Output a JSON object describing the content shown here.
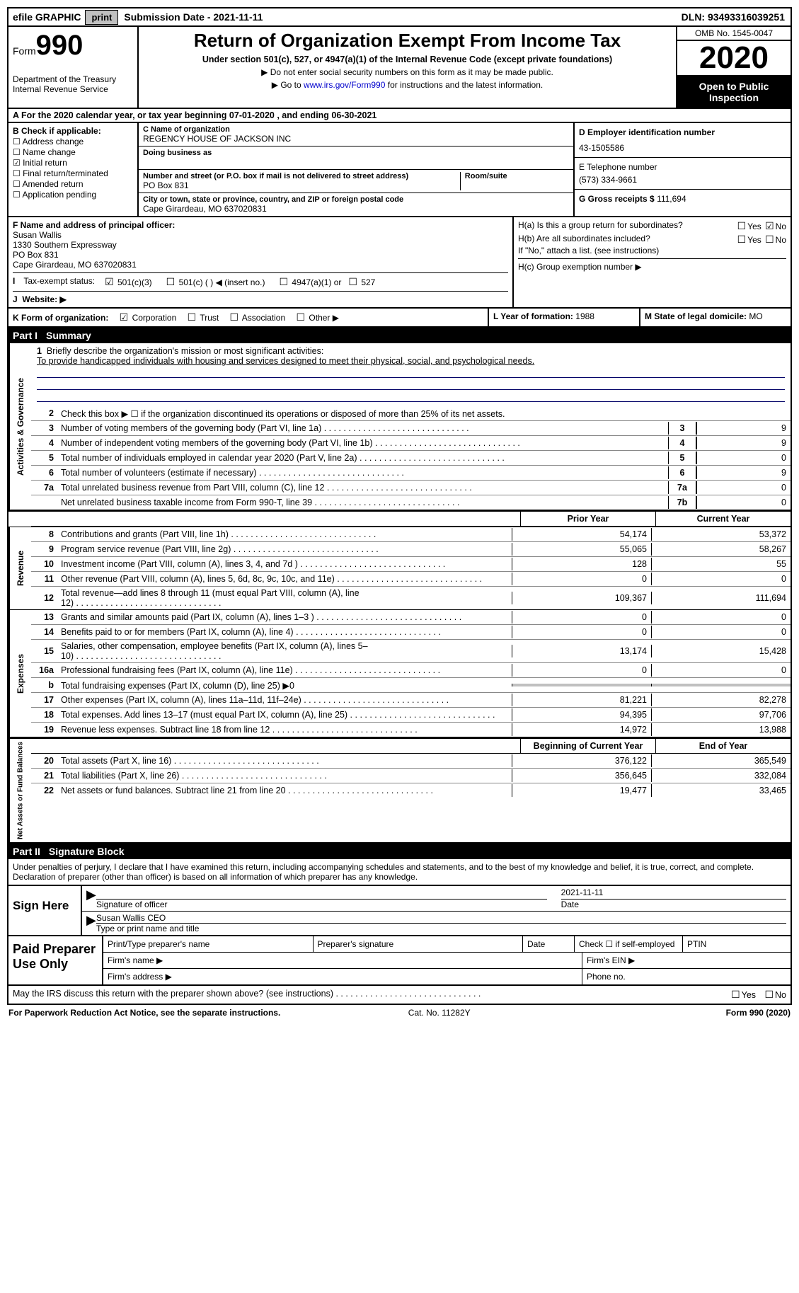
{
  "topbar": {
    "efile_label": "efile GRAPHIC",
    "print_btn": "print",
    "sub_date_label": "Submission Date - ",
    "sub_date": "2021-11-11",
    "dln_label": "DLN: ",
    "dln": "93493316039251"
  },
  "header": {
    "form_word": "Form",
    "form_num": "990",
    "dept1": "Department of the Treasury",
    "dept2": "Internal Revenue Service",
    "title": "Return of Organization Exempt From Income Tax",
    "sub": "Under section 501(c), 527, or 4947(a)(1) of the Internal Revenue Code (except private foundations)",
    "note1": "Do not enter social security numbers on this form as it may be made public.",
    "note2_pre": "Go to ",
    "link": "www.irs.gov/Form990",
    "note2_post": " for instructions and the latest information.",
    "omb": "OMB No. 1545-0047",
    "year": "2020",
    "open": "Open to Public Inspection"
  },
  "rowA": "For the 2020 calendar year, or tax year beginning 07-01-2020   , and ending 06-30-2021",
  "sectionB": {
    "hdr": "B Check if applicable:",
    "items": [
      {
        "label": "Address change",
        "on": false
      },
      {
        "label": "Name change",
        "on": false
      },
      {
        "label": "Initial return",
        "on": true
      },
      {
        "label": "Final return/terminated",
        "on": false
      },
      {
        "label": "Amended return",
        "on": false
      },
      {
        "label": "Application pending",
        "on": false
      }
    ]
  },
  "sectionC": {
    "lbl": "C Name of organization",
    "name": "REGENCY HOUSE OF JACKSON INC",
    "dba_lbl": "Doing business as",
    "addr_lbl": "Number and street (or P.O. box if mail is not delivered to street address)",
    "room_lbl": "Room/suite",
    "addr": "PO Box 831",
    "city_lbl": "City or town, state or province, country, and ZIP or foreign postal code",
    "city": "Cape Girardeau, MO  637020831"
  },
  "sectionD": {
    "lbl": "D Employer identification number",
    "val": "43-1505586"
  },
  "sectionE": {
    "lbl": "E Telephone number",
    "val": "(573) 334-9661"
  },
  "sectionG": {
    "lbl": "G Gross receipts $",
    "val": "111,694"
  },
  "sectionF": {
    "lbl": "F  Name and address of principal officer:",
    "name": "Susan Wallis",
    "a1": "1330 Southern Expressway",
    "a2": "PO Box 831",
    "a3": "Cape Girardeau, MO  637020831"
  },
  "sectionH": {
    "ha": "H(a)  Is this a group return for subordinates?",
    "hb": "H(b)  Are all subordinates included?",
    "hb_note": "If \"No,\" attach a list. (see instructions)",
    "hc": "H(c)  Group exemption number ▶",
    "yes": "Yes",
    "no": "No"
  },
  "sectionI": {
    "lbl": "Tax-exempt status:",
    "opts": [
      "501(c)(3)",
      "501(c) (  ) ◀ (insert no.)",
      "4947(a)(1) or",
      "527"
    ]
  },
  "sectionJ": {
    "lbl": "Website: ▶"
  },
  "sectionK": {
    "lbl": "K Form of organization:",
    "opts": [
      "Corporation",
      "Trust",
      "Association",
      "Other ▶"
    ]
  },
  "sectionL": {
    "lbl": "L Year of formation:",
    "val": "1988"
  },
  "sectionM": {
    "lbl": "M State of legal domicile:",
    "val": "MO"
  },
  "part1": {
    "label": "Part I",
    "title": "Summary"
  },
  "mission": {
    "num": "1",
    "lbl": "Briefly describe the organization's mission or most significant activities:",
    "text": "To provide handicapped individuals with housing and services designed to meet their physical, social, and psychological needs."
  },
  "governance": {
    "v": "Activities & Governance",
    "l2": "Check this box ▶ ☐  if the organization discontinued its operations or disposed of more than 25% of its net assets.",
    "rows": [
      {
        "n": "3",
        "d": "Number of voting members of the governing body (Part VI, line 1a)",
        "box": "3",
        "v": "9"
      },
      {
        "n": "4",
        "d": "Number of independent voting members of the governing body (Part VI, line 1b)",
        "box": "4",
        "v": "9"
      },
      {
        "n": "5",
        "d": "Total number of individuals employed in calendar year 2020 (Part V, line 2a)",
        "box": "5",
        "v": "0"
      },
      {
        "n": "6",
        "d": "Total number of volunteers (estimate if necessary)",
        "box": "6",
        "v": "9"
      },
      {
        "n": "7a",
        "d": "Total unrelated business revenue from Part VIII, column (C), line 12",
        "box": "7a",
        "v": "0"
      },
      {
        "n": "",
        "d": "Net unrelated business taxable income from Form 990-T, line 39",
        "box": "7b",
        "v": "0"
      }
    ]
  },
  "col_hdrs": {
    "prior": "Prior Year",
    "current": "Current Year",
    "begin": "Beginning of Current Year",
    "end": "End of Year"
  },
  "revenue": {
    "v": "Revenue",
    "rows": [
      {
        "n": "8",
        "d": "Contributions and grants (Part VIII, line 1h)",
        "p": "54,174",
        "c": "53,372"
      },
      {
        "n": "9",
        "d": "Program service revenue (Part VIII, line 2g)",
        "p": "55,065",
        "c": "58,267"
      },
      {
        "n": "10",
        "d": "Investment income (Part VIII, column (A), lines 3, 4, and 7d )",
        "p": "128",
        "c": "55"
      },
      {
        "n": "11",
        "d": "Other revenue (Part VIII, column (A), lines 5, 6d, 8c, 9c, 10c, and 11e)",
        "p": "0",
        "c": "0"
      },
      {
        "n": "12",
        "d": "Total revenue—add lines 8 through 11 (must equal Part VIII, column (A), line 12)",
        "p": "109,367",
        "c": "111,694"
      }
    ]
  },
  "expenses": {
    "v": "Expenses",
    "rows": [
      {
        "n": "13",
        "d": "Grants and similar amounts paid (Part IX, column (A), lines 1–3 )",
        "p": "0",
        "c": "0"
      },
      {
        "n": "14",
        "d": "Benefits paid to or for members (Part IX, column (A), line 4)",
        "p": "0",
        "c": "0"
      },
      {
        "n": "15",
        "d": "Salaries, other compensation, employee benefits (Part IX, column (A), lines 5–10)",
        "p": "13,174",
        "c": "15,428"
      },
      {
        "n": "16a",
        "d": "Professional fundraising fees (Part IX, column (A), line 11e)",
        "p": "0",
        "c": "0"
      },
      {
        "n": "b",
        "d": "Total fundraising expenses (Part IX, column (D), line 25) ▶0",
        "shade": true
      },
      {
        "n": "17",
        "d": "Other expenses (Part IX, column (A), lines 11a–11d, 11f–24e)",
        "p": "81,221",
        "c": "82,278"
      },
      {
        "n": "18",
        "d": "Total expenses. Add lines 13–17 (must equal Part IX, column (A), line 25)",
        "p": "94,395",
        "c": "97,706"
      },
      {
        "n": "19",
        "d": "Revenue less expenses. Subtract line 18 from line 12",
        "p": "14,972",
        "c": "13,988"
      }
    ]
  },
  "netassets": {
    "v": "Net Assets or Fund Balances",
    "rows": [
      {
        "n": "20",
        "d": "Total assets (Part X, line 16)",
        "p": "376,122",
        "c": "365,549"
      },
      {
        "n": "21",
        "d": "Total liabilities (Part X, line 26)",
        "p": "356,645",
        "c": "332,084"
      },
      {
        "n": "22",
        "d": "Net assets or fund balances. Subtract line 21 from line 20",
        "p": "19,477",
        "c": "33,465"
      }
    ]
  },
  "part2": {
    "label": "Part II",
    "title": "Signature Block"
  },
  "sig_intro": "Under penalties of perjury, I declare that I have examined this return, including accompanying schedules and statements, and to the best of my knowledge and belief, it is true, correct, and complete. Declaration of preparer (other than officer) is based on all information of which preparer has any knowledge.",
  "sign": {
    "left": "Sign Here",
    "sig_lbl": "Signature of officer",
    "date_lbl": "Date",
    "date": "2021-11-11",
    "name": "Susan Wallis CEO",
    "name_lbl": "Type or print name and title"
  },
  "paid": {
    "left": "Paid Preparer Use Only",
    "r1": [
      "Print/Type preparer's name",
      "Preparer's signature",
      "Date",
      "Check ☐ if self-employed",
      "PTIN"
    ],
    "r2_l": "Firm's name  ▶",
    "r2_r": "Firm's EIN ▶",
    "r3_l": "Firm's address ▶",
    "r3_r": "Phone no."
  },
  "discuss": {
    "q": "May the IRS discuss this return with the preparer shown above? (see instructions)",
    "yes": "Yes",
    "no": "No"
  },
  "footer": {
    "l": "For Paperwork Reduction Act Notice, see the separate instructions.",
    "m": "Cat. No. 11282Y",
    "r": "Form 990 (2020)"
  }
}
